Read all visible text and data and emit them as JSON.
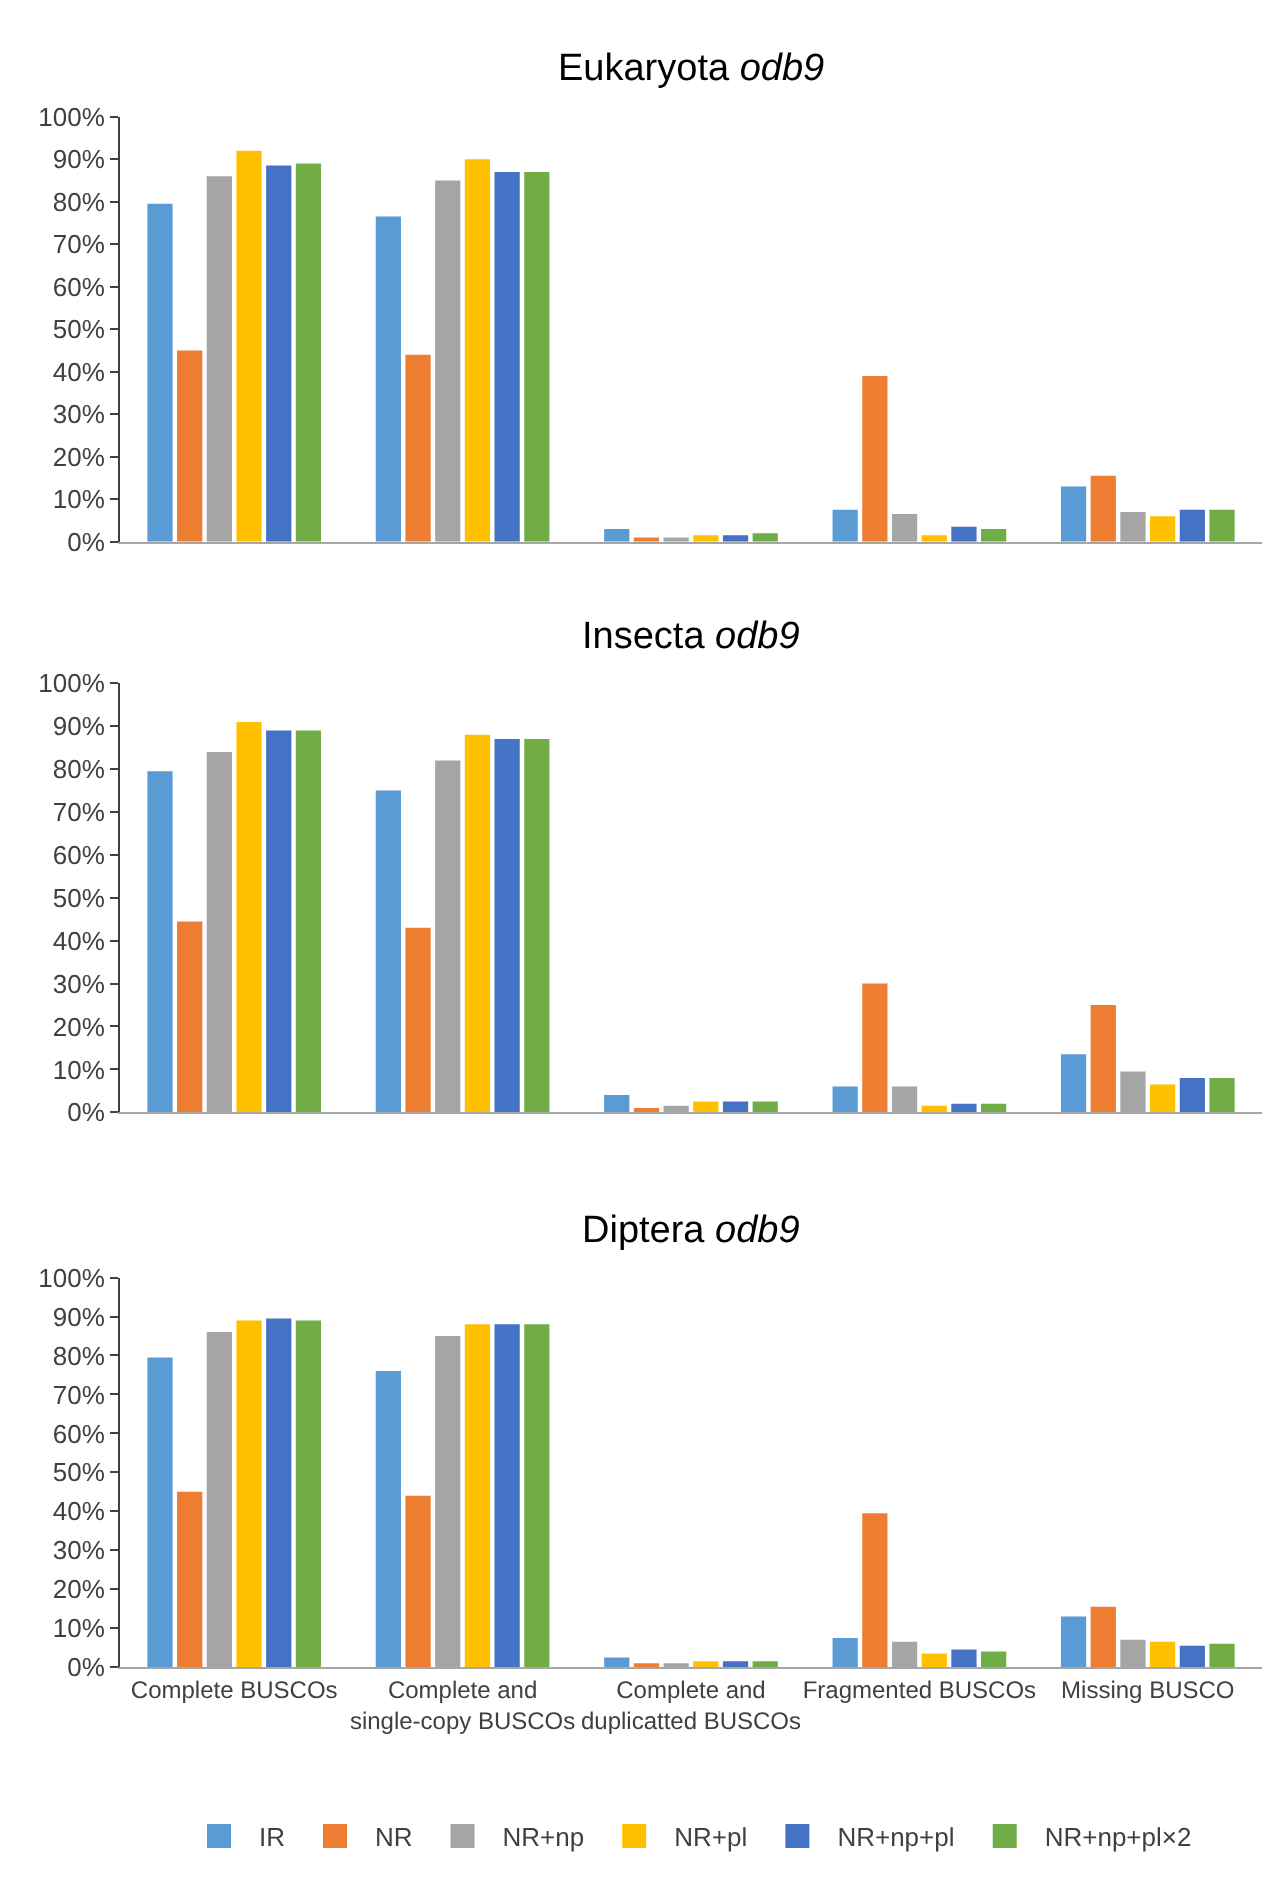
{
  "chart_data": [
    {
      "type": "bar",
      "title": "Eukaryota odb9",
      "categories": [
        "Complete BUSCOs",
        "Complete and single-copy BUSCOs",
        "Complete and duplicatted BUSCOs",
        "Fragmented BUSCOs",
        "Missing BUSCO"
      ],
      "tick_labels": "y",
      "ylim": [
        0,
        100
      ],
      "yticks": [
        {
          "value": 0,
          "label": "0%"
        },
        {
          "value": 10,
          "label": "10%"
        },
        {
          "value": 20,
          "label": "20%"
        },
        {
          "value": 30,
          "label": "30%"
        },
        {
          "value": 40,
          "label": "40%"
        },
        {
          "value": 50,
          "label": "50%"
        },
        {
          "value": 60,
          "label": "60%"
        },
        {
          "value": 70,
          "label": "70%"
        },
        {
          "value": 80,
          "label": "80%"
        },
        {
          "value": 90,
          "label": "90%"
        },
        {
          "value": 100,
          "label": "100%"
        }
      ],
      "legend": "bottom",
      "series": [
        {
          "name": "IR",
          "color": "#5b9bd5",
          "values": [
            79.5,
            76.5,
            3,
            7.5,
            13
          ]
        },
        {
          "name": "NR",
          "color": "#ed7d31",
          "values": [
            45,
            44,
            1,
            39,
            15.5
          ]
        },
        {
          "name": "NR+np",
          "color": "#a5a5a5",
          "values": [
            86,
            85,
            1,
            6.5,
            7
          ]
        },
        {
          "name": "NR+pl",
          "color": "#ffc000",
          "values": [
            92,
            90,
            1.5,
            1.5,
            6
          ]
        },
        {
          "name": "NR+np+pl",
          "color": "#4472c4",
          "values": [
            88.5,
            87,
            1.5,
            3.5,
            7.5
          ]
        },
        {
          "name": "NR+np+pl×2",
          "color": "#70ad47",
          "values": [
            89,
            87,
            2,
            3,
            7.5
          ]
        }
      ]
    },
    {
      "type": "bar",
      "title": "Insecta odb9",
      "categories": [
        "Complete BUSCOs",
        "Complete and single-copy BUSCOs",
        "Complete and duplicatted BUSCOs",
        "Fragmented BUSCOs",
        "Missing BUSCO"
      ],
      "tick_labels": "y",
      "ylim": [
        0,
        100
      ],
      "yticks": [
        {
          "value": 0,
          "label": "0%"
        },
        {
          "value": 10,
          "label": "10%"
        },
        {
          "value": 20,
          "label": "20%"
        },
        {
          "value": 30,
          "label": "30%"
        },
        {
          "value": 40,
          "label": "40%"
        },
        {
          "value": 50,
          "label": "50%"
        },
        {
          "value": 60,
          "label": "60%"
        },
        {
          "value": 70,
          "label": "70%"
        },
        {
          "value": 80,
          "label": "80%"
        },
        {
          "value": 90,
          "label": "90%"
        },
        {
          "value": 100,
          "label": "100%"
        }
      ],
      "series": [
        {
          "color": "#5b9bd5",
          "values": [
            79.5,
            75,
            4,
            6,
            13.5
          ]
        },
        {
          "color": "#ed7d31",
          "values": [
            44.5,
            43,
            1,
            30,
            25
          ]
        },
        {
          "color": "#a5a5a5",
          "values": [
            84,
            82,
            1.5,
            6,
            9.5
          ]
        },
        {
          "color": "#ffc000",
          "values": [
            91,
            88,
            2.5,
            1.5,
            6.5
          ]
        },
        {
          "color": "#4472c4",
          "values": [
            89,
            87,
            2.5,
            2,
            8
          ]
        },
        {
          "color": "#70ad47",
          "values": [
            89,
            87,
            2.5,
            2,
            8
          ]
        }
      ]
    },
    {
      "type": "bar",
      "title": "Diptera odb9",
      "categories": [
        "Complete BUSCOs",
        "Complete and single-copy BUSCOs",
        "Complete and duplicatted BUSCOs",
        "Fragmented BUSCOs",
        "Missing BUSCO"
      ],
      "ylim": [
        0,
        100
      ],
      "yticks": [
        {
          "value": 0,
          "label": "0%"
        },
        {
          "value": 10,
          "label": "10%"
        },
        {
          "value": 20,
          "label": "20%"
        },
        {
          "value": 30,
          "label": "30%"
        },
        {
          "value": 40,
          "label": "40%"
        },
        {
          "value": 50,
          "label": "50%"
        },
        {
          "value": 60,
          "label": "60%"
        },
        {
          "value": 70,
          "label": "70%"
        },
        {
          "value": 80,
          "label": "80%"
        },
        {
          "value": 90,
          "label": "90%"
        },
        {
          "value": 100,
          "label": "100%"
        }
      ],
      "series": [
        {
          "color": "#5b9bd5",
          "values": [
            79.5,
            76,
            2.5,
            7.5,
            13
          ]
        },
        {
          "color": "#ed7d31",
          "values": [
            45,
            44,
            1,
            39.5,
            15.5
          ]
        },
        {
          "color": "#a5a5a5",
          "values": [
            86,
            85,
            1,
            6.5,
            7
          ]
        },
        {
          "color": "#ffc000",
          "values": [
            89,
            88,
            1.5,
            3.5,
            6.5
          ]
        },
        {
          "color": "#4472c4",
          "values": [
            89.5,
            88,
            1.5,
            4.5,
            5.5
          ]
        },
        {
          "color": "#70ad47",
          "values": [
            89,
            88,
            1.5,
            4,
            6
          ]
        }
      ]
    }
  ]
}
